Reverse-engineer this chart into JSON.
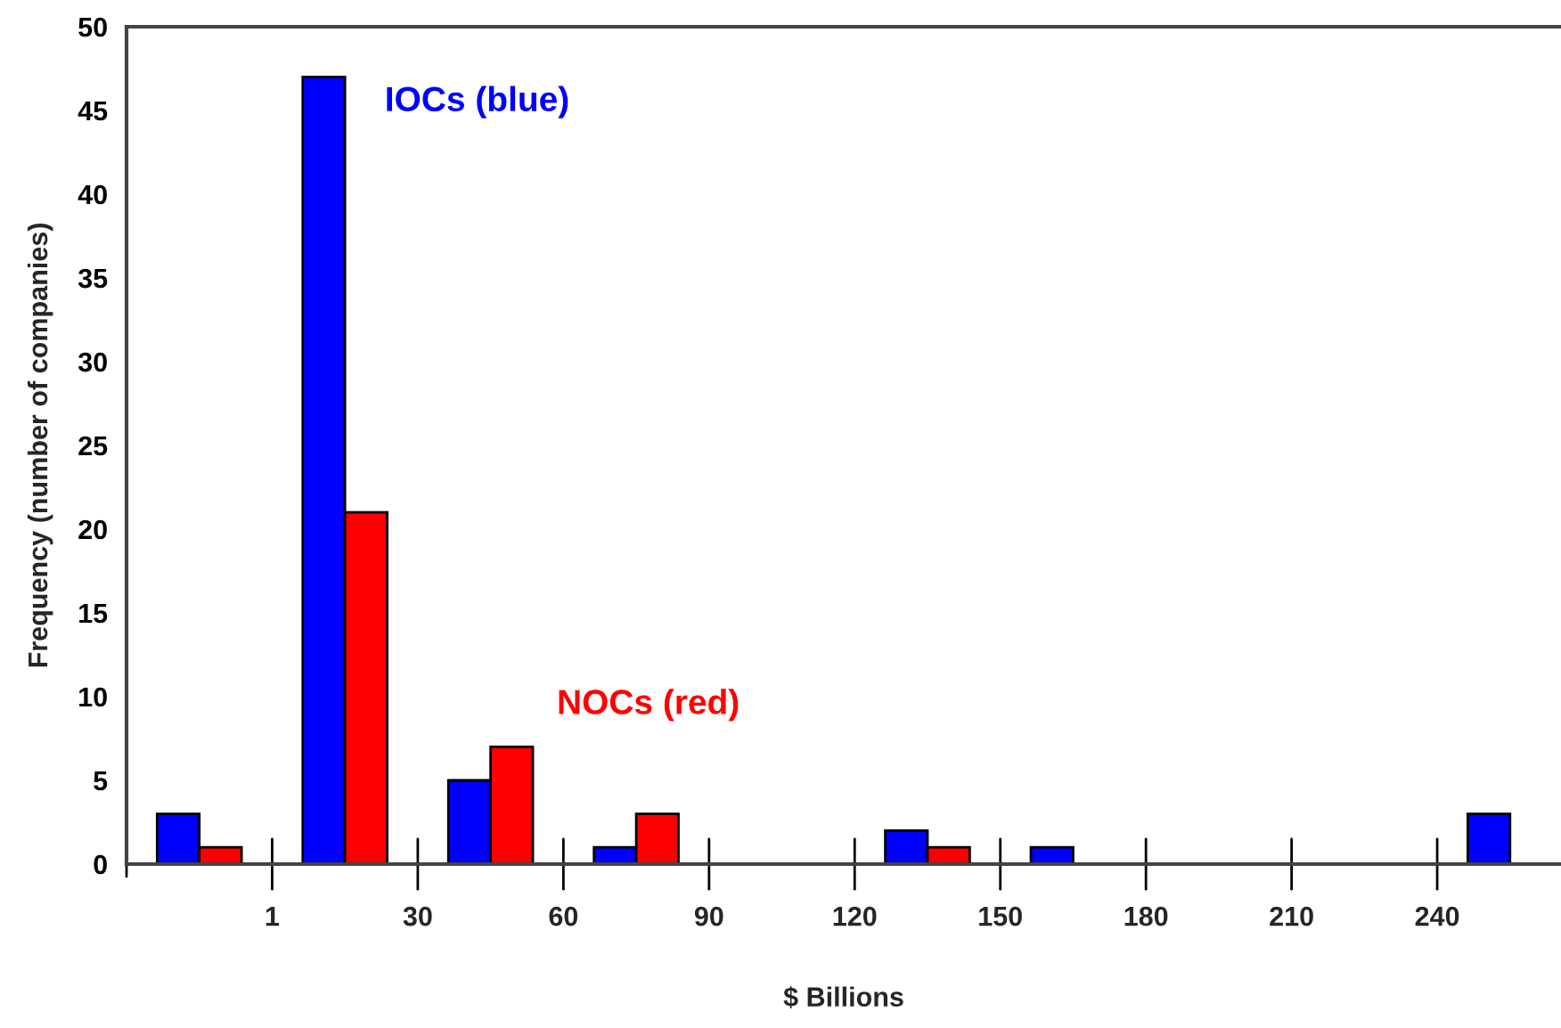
{
  "chart_data": {
    "type": "bar",
    "xlabel": "$ Billions",
    "ylabel": "Frequency (number of companies)",
    "categories": [
      null,
      null,
      null,
      null,
      null,
      null,
      null,
      null,
      null,
      null
    ],
    "series": [
      {
        "name": "IOCs (blue)",
        "color": "#0000ff",
        "values": [
          3,
          47,
          5,
          1,
          0,
          2,
          1,
          0,
          0,
          3
        ]
      },
      {
        "name": "NOCs (red)",
        "color": "#ff0000",
        "values": [
          1,
          21,
          7,
          3,
          0,
          1,
          0,
          0,
          0,
          0
        ]
      }
    ],
    "annotations": [
      "1",
      "30",
      "60",
      "90",
      "120",
      "150",
      "180",
      "210",
      "240"
    ],
    "ylim": [
      0,
      50
    ],
    "yticks": [
      0,
      5,
      10,
      15,
      20,
      25,
      30,
      35,
      40,
      45,
      50
    ],
    "grid": false
  }
}
